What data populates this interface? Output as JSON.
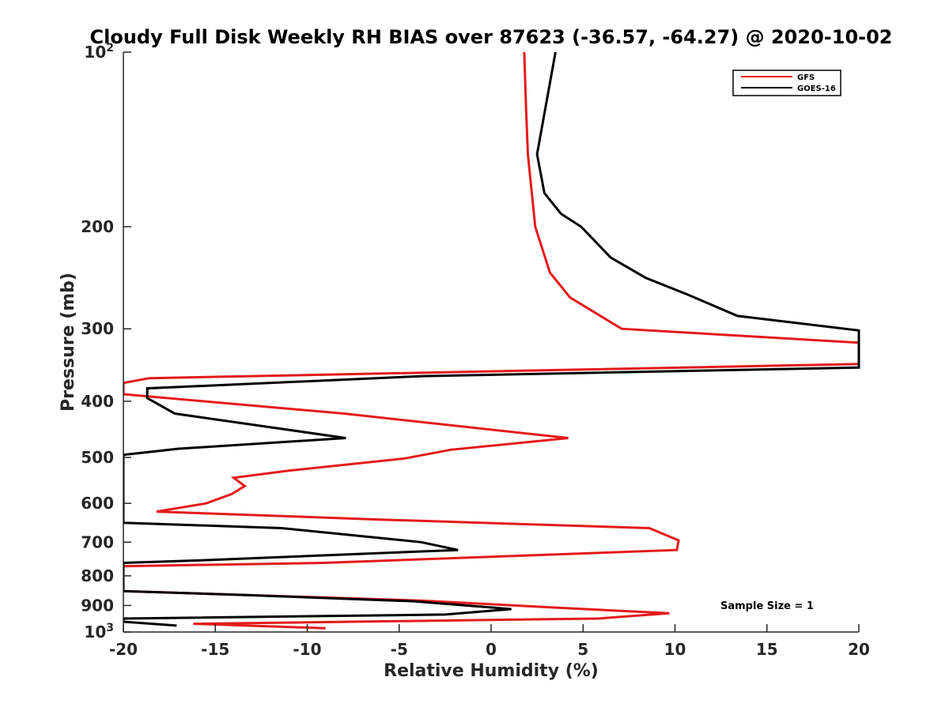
{
  "chart_data": {
    "type": "line",
    "title": "Cloudy Full Disk Weekly RH BIAS over 87623 (-36.57, -64.27) @ 2020-10-02",
    "xlabel": "Relative Humidity (%)",
    "ylabel": "Pressure (mb)",
    "xlim": [
      -20,
      20
    ],
    "ylim": [
      100,
      1000
    ],
    "y_scale": "log",
    "y_reversed": true,
    "grid": false,
    "legend_position": "top-right",
    "x_ticks": [
      -20,
      -15,
      -10,
      -5,
      0,
      5,
      10,
      15,
      20
    ],
    "y_ticks": [
      {
        "value": 100,
        "label": "10",
        "sup": "2"
      },
      {
        "value": 200,
        "label": "200",
        "sup": ""
      },
      {
        "value": 300,
        "label": "300",
        "sup": ""
      },
      {
        "value": 400,
        "label": "400",
        "sup": ""
      },
      {
        "value": 500,
        "label": "500",
        "sup": ""
      },
      {
        "value": 600,
        "label": "600",
        "sup": ""
      },
      {
        "value": 700,
        "label": "700",
        "sup": ""
      },
      {
        "value": 800,
        "label": "800",
        "sup": ""
      },
      {
        "value": 900,
        "label": "900",
        "sup": ""
      },
      {
        "value": 1000,
        "label": "10",
        "sup": "3"
      }
    ],
    "series": [
      {
        "name": "GFS",
        "color": "#e31a1c",
        "points": [
          [
            1.8,
            100
          ],
          [
            1.9,
            125
          ],
          [
            2.0,
            150
          ],
          [
            2.4,
            200
          ],
          [
            3.2,
            240
          ],
          [
            4.3,
            265
          ],
          [
            7.1,
            300
          ],
          [
            20,
            317
          ],
          [
            20,
            345
          ],
          [
            -18.6,
            365
          ],
          [
            -20,
            372
          ],
          [
            -20,
            389
          ],
          [
            -8.0,
            420
          ],
          [
            4.2,
            463
          ],
          [
            -2.2,
            485
          ],
          [
            -4.7,
            502
          ],
          [
            -11.0,
            527
          ],
          [
            -14.0,
            542
          ],
          [
            -13.4,
            560
          ],
          [
            -14.1,
            578
          ],
          [
            -15.5,
            600
          ],
          [
            -18.2,
            620
          ],
          [
            -6.0,
            640
          ],
          [
            8.6,
            662
          ],
          [
            10.2,
            695
          ],
          [
            10.1,
            722
          ],
          [
            -9.1,
            760
          ],
          [
            -20,
            770
          ],
          [
            -20,
            850
          ],
          [
            -3.8,
            883
          ],
          [
            5.1,
            913
          ],
          [
            9.7,
            928
          ],
          [
            5.8,
            948
          ],
          [
            -16.2,
            968
          ],
          [
            -9.0,
            985
          ]
        ]
      },
      {
        "name": "GOES-16",
        "color": "#000000",
        "points": [
          [
            3.5,
            100
          ],
          [
            2.5,
            150
          ],
          [
            2.9,
            175
          ],
          [
            3.8,
            190
          ],
          [
            4.9,
            200
          ],
          [
            6.5,
            226
          ],
          [
            8.4,
            245
          ],
          [
            10.7,
            262
          ],
          [
            13.4,
            285
          ],
          [
            20,
            302
          ],
          [
            20,
            350
          ],
          [
            -3.7,
            362
          ],
          [
            -18.7,
            380
          ],
          [
            -18.7,
            395
          ],
          [
            -17.2,
            420
          ],
          [
            -7.9,
            463
          ],
          [
            -17.0,
            483
          ],
          [
            -20,
            495
          ],
          [
            -20,
            648
          ],
          [
            -11.4,
            662
          ],
          [
            -7.7,
            680
          ],
          [
            -3.8,
            700
          ],
          [
            -1.8,
            722
          ],
          [
            -15.6,
            752
          ],
          [
            -20,
            760
          ],
          [
            -20,
            850
          ],
          [
            -13.6,
            863
          ],
          [
            -4.2,
            885
          ],
          [
            1.1,
            913
          ],
          [
            -2.5,
            933
          ],
          [
            -20,
            948
          ],
          [
            -20,
            960
          ],
          [
            -17.1,
            975
          ]
        ]
      }
    ],
    "annotations": [
      "Sample Size = 1"
    ]
  }
}
